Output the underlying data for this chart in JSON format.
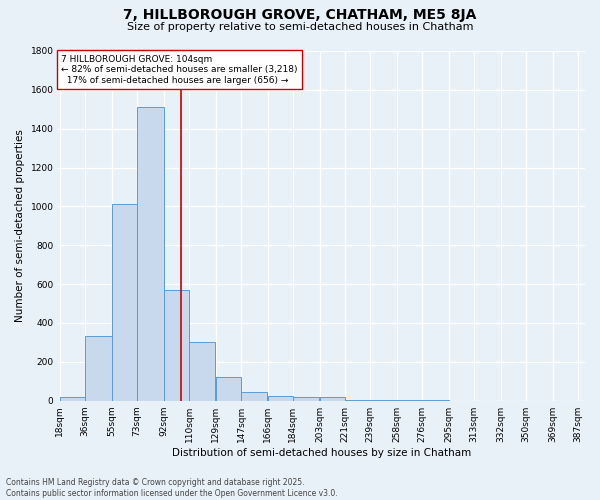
{
  "title": "7, HILLBOROUGH GROVE, CHATHAM, ME5 8JA",
  "subtitle": "Size of property relative to semi-detached houses in Chatham",
  "xlabel": "Distribution of semi-detached houses by size in Chatham",
  "ylabel": "Number of semi-detached properties",
  "bin_edges": [
    18,
    36,
    55,
    73,
    92,
    110,
    129,
    147,
    166,
    184,
    203,
    221,
    239,
    258,
    276,
    295,
    313,
    332,
    350,
    369,
    387
  ],
  "bar_heights": [
    20,
    335,
    1010,
    1510,
    570,
    300,
    120,
    45,
    25,
    20,
    20,
    5,
    5,
    2,
    2,
    1,
    1,
    0,
    0,
    0
  ],
  "bar_color": "#c9d9ed",
  "bar_edge_color": "#5b9bd5",
  "tick_labels": [
    "18sqm",
    "36sqm",
    "55sqm",
    "73sqm",
    "92sqm",
    "110sqm",
    "129sqm",
    "147sqm",
    "166sqm",
    "184sqm",
    "203sqm",
    "221sqm",
    "239sqm",
    "258sqm",
    "276sqm",
    "295sqm",
    "313sqm",
    "332sqm",
    "350sqm",
    "369sqm",
    "387sqm"
  ],
  "ylim": [
    0,
    1800
  ],
  "yticks": [
    0,
    200,
    400,
    600,
    800,
    1000,
    1200,
    1400,
    1600,
    1800
  ],
  "vline_x": 104,
  "vline_color": "#cc0000",
  "annotation_line1": "7 HILLBOROUGH GROVE: 104sqm",
  "annotation_line2": "← 82% of semi-detached houses are smaller (3,218)",
  "annotation_line3": "  17% of semi-detached houses are larger (656) →",
  "annotation_box_color": "#ffffff",
  "annotation_box_edge": "#cc0000",
  "bg_color": "#e8f0f8",
  "plot_bg_color": "#e8f0f8",
  "grid_color": "#ffffff",
  "footer_line1": "Contains HM Land Registry data © Crown copyright and database right 2025.",
  "footer_line2": "Contains public sector information licensed under the Open Government Licence v3.0.",
  "title_fontsize": 10,
  "subtitle_fontsize": 8,
  "label_fontsize": 7.5,
  "tick_fontsize": 6.5,
  "annotation_fontsize": 6.5,
  "footer_fontsize": 5.5
}
